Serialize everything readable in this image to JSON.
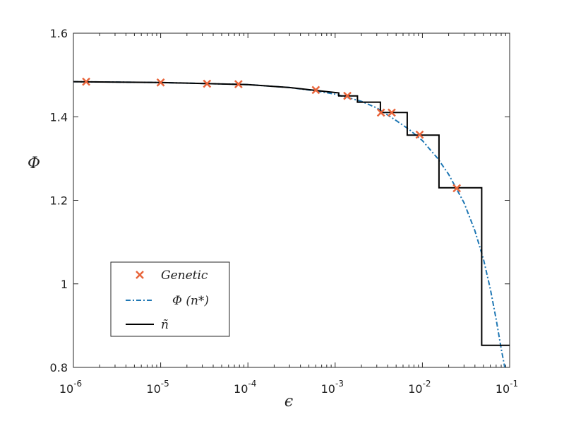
{
  "chart_data": {
    "type": "line",
    "title": "",
    "xlabel": "ϵ",
    "ylabel": "Φ",
    "xscale": "log",
    "xlim": [
      1e-06,
      0.1
    ],
    "ylim": [
      0.8,
      1.6
    ],
    "grid": false,
    "legend_position": "lower-left",
    "x_ticks": [
      {
        "value": 1e-06,
        "base": "10",
        "exp": "-6"
      },
      {
        "value": 1e-05,
        "base": "10",
        "exp": "-5"
      },
      {
        "value": 0.0001,
        "base": "10",
        "exp": "-4"
      },
      {
        "value": 0.001,
        "base": "10",
        "exp": "-3"
      },
      {
        "value": 0.01,
        "base": "10",
        "exp": "-2"
      },
      {
        "value": 0.1,
        "base": "10",
        "exp": "-1"
      }
    ],
    "y_ticks": [
      {
        "value": 0.8,
        "label": "0.8"
      },
      {
        "value": 1.0,
        "label": "1"
      },
      {
        "value": 1.2,
        "label": "1.2"
      },
      {
        "value": 1.4,
        "label": "1.4"
      },
      {
        "value": 1.6,
        "label": "1.6"
      }
    ],
    "series": [
      {
        "name": "Genetic",
        "kind": "scatter",
        "marker": "x",
        "color": "#e8643a",
        "x": [
          1.4e-06,
          1e-05,
          3.4e-05,
          7.8e-05,
          0.0006,
          0.00138,
          0.00335,
          0.00445,
          0.0093,
          0.0248
        ],
        "y": [
          1.484,
          1.482,
          1.479,
          1.478,
          1.464,
          1.45,
          1.41,
          1.41,
          1.357,
          1.229
        ]
      },
      {
        "name": "Φ (n*)",
        "kind": "line",
        "style": "dash-dot",
        "color": "#1f77b4",
        "x": [
          1e-06,
          1e-05,
          0.0001,
          0.0003,
          0.0006,
          0.001,
          0.002,
          0.003,
          0.005,
          0.007,
          0.01,
          0.015,
          0.02,
          0.03,
          0.04,
          0.05,
          0.06,
          0.07,
          0.08,
          0.088
        ],
        "y": [
          1.484,
          1.482,
          1.477,
          1.47,
          1.462,
          1.454,
          1.437,
          1.421,
          1.391,
          1.37,
          1.343,
          1.3,
          1.262,
          1.194,
          1.127,
          1.06,
          0.988,
          0.915,
          0.845,
          0.8
        ]
      },
      {
        "name": "ñ",
        "kind": "step",
        "style": "solid",
        "color": "#000000",
        "x": [
          1e-06,
          1e-05,
          0.0001,
          0.0003,
          0.0006,
          0.0011,
          0.0011,
          0.0018,
          0.0018,
          0.0033,
          0.0033,
          0.0067,
          0.0067,
          0.0155,
          0.0155,
          0.0478,
          0.0478,
          0.1
        ],
        "y": [
          1.484,
          1.482,
          1.477,
          1.47,
          1.463,
          1.457,
          1.45,
          1.45,
          1.435,
          1.435,
          1.41,
          1.41,
          1.356,
          1.356,
          1.23,
          1.23,
          0.853,
          0.853
        ]
      }
    ],
    "legend": [
      {
        "label": "Genetic",
        "series": 0
      },
      {
        "label": "Φ (n*)",
        "series": 1
      },
      {
        "label": "ñ",
        "series": 2
      }
    ]
  }
}
